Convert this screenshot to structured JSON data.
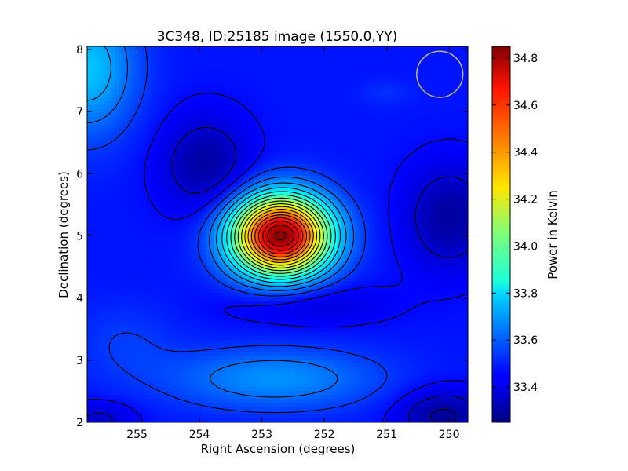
{
  "chart_data": {
    "type": "heatmap",
    "title": "3C348, ID:25185 image (1550.0,YY)",
    "xlabel": "Right Ascension (degrees)",
    "ylabel": "Declination (degrees)",
    "xlim": [
      255.8,
      249.7
    ],
    "ylim": [
      2.0,
      8.05
    ],
    "x_ticks": [
      255,
      254,
      253,
      252,
      251,
      250
    ],
    "y_ticks": [
      2,
      3,
      4,
      5,
      6,
      7,
      8
    ],
    "colorbar": {
      "label": "Power in Kelvin",
      "range": [
        33.25,
        34.85
      ],
      "ticks": [
        "33.4",
        "33.6",
        "33.8",
        "34.0",
        "34.2",
        "34.4",
        "34.6",
        "34.8"
      ],
      "colormap": "jet"
    },
    "peak": {
      "ra": 252.7,
      "dec": 5.0,
      "value": 34.84
    },
    "secondary_maxima": [
      {
        "ra": 255.6,
        "dec": 7.6,
        "value": 33.75
      },
      {
        "ra": 252.7,
        "dec": 2.65,
        "value": 33.68
      }
    ],
    "minima": [
      {
        "ra": 253.9,
        "dec": 6.15,
        "value": 33.3
      },
      {
        "ra": 250.1,
        "dec": 5.3,
        "value": 33.3
      },
      {
        "ra": 250.2,
        "dec": 2.1,
        "value": 33.28
      }
    ],
    "beam_marker": {
      "ra": 250.15,
      "dec": 7.6,
      "radius_deg": 0.37,
      "color": "#b8b870"
    },
    "contour_color": "#000000"
  }
}
